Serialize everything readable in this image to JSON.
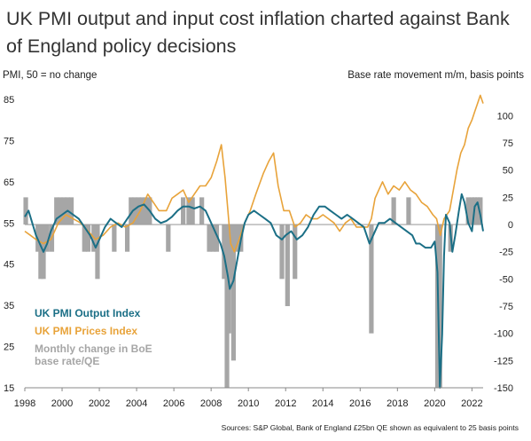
{
  "title": "UK PMI output and input cost inflation charted against Bank of England policy decisions",
  "left_axis_label": "PMI, 50 = no change",
  "right_axis_label": "Base rate movement m/m, basis points",
  "source": "Sources: S&P Global, Bank of England £25bn QE shown as equivalent to 25 basis points",
  "colors": {
    "output": "#1b6f86",
    "prices": "#e8a33a",
    "bars": "#a6a6a6",
    "zero_line": "#a0a0a0",
    "axis": "#888888"
  },
  "chart_data": {
    "type": "line",
    "x_ticks": [
      "1998",
      "2000",
      "2002",
      "2004",
      "2006",
      "2008",
      "2010",
      "2012",
      "2014",
      "2016",
      "2018",
      "2020",
      "2022"
    ],
    "xlim": [
      1998,
      2022.6
    ],
    "ylim_left": [
      15,
      85
    ],
    "ylim_right": [
      -150,
      115
    ],
    "y_ticks_left": [
      "85",
      "75",
      "65",
      "55",
      "45",
      "35",
      "25",
      "15"
    ],
    "y_ticks_right": [
      "100",
      "75",
      "50",
      "25",
      "0",
      "-25",
      "-50",
      "-75",
      "-100",
      "-125",
      "-150"
    ],
    "series": [
      {
        "name": "UK PMI Output Index",
        "axis": "left",
        "points": [
          [
            1998.0,
            56.5
          ],
          [
            1998.2,
            58
          ],
          [
            1998.4,
            55
          ],
          [
            1998.6,
            52
          ],
          [
            1998.8,
            50
          ],
          [
            1999.0,
            48
          ],
          [
            1999.2,
            50
          ],
          [
            1999.4,
            53
          ],
          [
            1999.7,
            56
          ],
          [
            2000.0,
            57
          ],
          [
            2000.3,
            58
          ],
          [
            2000.6,
            57
          ],
          [
            2000.9,
            56
          ],
          [
            2001.2,
            54
          ],
          [
            2001.5,
            52
          ],
          [
            2001.8,
            49
          ],
          [
            2002.0,
            51
          ],
          [
            2002.3,
            54
          ],
          [
            2002.6,
            56
          ],
          [
            2002.9,
            55
          ],
          [
            2003.2,
            54
          ],
          [
            2003.5,
            56
          ],
          [
            2003.8,
            58
          ],
          [
            2004.1,
            59
          ],
          [
            2004.4,
            59.5
          ],
          [
            2004.7,
            58
          ],
          [
            2005.0,
            56
          ],
          [
            2005.3,
            55
          ],
          [
            2005.6,
            55.5
          ],
          [
            2005.9,
            56.5
          ],
          [
            2006.2,
            58
          ],
          [
            2006.5,
            59
          ],
          [
            2006.8,
            59
          ],
          [
            2007.1,
            58.5
          ],
          [
            2007.4,
            59
          ],
          [
            2007.7,
            58
          ],
          [
            2007.9,
            56
          ],
          [
            2008.1,
            54
          ],
          [
            2008.3,
            52
          ],
          [
            2008.5,
            50
          ],
          [
            2008.7,
            47
          ],
          [
            2008.9,
            42
          ],
          [
            2009.0,
            39
          ],
          [
            2009.2,
            41
          ],
          [
            2009.4,
            46
          ],
          [
            2009.6,
            51
          ],
          [
            2009.8,
            55
          ],
          [
            2010.0,
            57
          ],
          [
            2010.3,
            58
          ],
          [
            2010.6,
            57
          ],
          [
            2010.9,
            56
          ],
          [
            2011.2,
            55
          ],
          [
            2011.5,
            52
          ],
          [
            2011.8,
            51
          ],
          [
            2012.0,
            52
          ],
          [
            2012.3,
            53
          ],
          [
            2012.6,
            51
          ],
          [
            2012.9,
            52
          ],
          [
            2013.2,
            54
          ],
          [
            2013.5,
            57
          ],
          [
            2013.8,
            59
          ],
          [
            2014.1,
            59
          ],
          [
            2014.4,
            58
          ],
          [
            2014.7,
            57
          ],
          [
            2015.0,
            56
          ],
          [
            2015.3,
            57
          ],
          [
            2015.6,
            56
          ],
          [
            2015.9,
            55
          ],
          [
            2016.2,
            54
          ],
          [
            2016.5,
            50
          ],
          [
            2016.7,
            52
          ],
          [
            2017.0,
            55
          ],
          [
            2017.3,
            55
          ],
          [
            2017.6,
            56
          ],
          [
            2017.9,
            55
          ],
          [
            2018.2,
            54
          ],
          [
            2018.5,
            53
          ],
          [
            2018.8,
            52
          ],
          [
            2019.0,
            50
          ],
          [
            2019.2,
            50
          ],
          [
            2019.5,
            49
          ],
          [
            2019.8,
            49
          ],
          [
            2020.0,
            50.5
          ],
          [
            2020.15,
            43
          ],
          [
            2020.28,
            15
          ],
          [
            2020.4,
            28
          ],
          [
            2020.5,
            47
          ],
          [
            2020.6,
            57
          ],
          [
            2020.8,
            55
          ],
          [
            2020.95,
            48
          ],
          [
            2021.1,
            52
          ],
          [
            2021.3,
            58
          ],
          [
            2021.45,
            62
          ],
          [
            2021.6,
            60
          ],
          [
            2021.8,
            55
          ],
          [
            2022.0,
            53
          ],
          [
            2022.15,
            59
          ],
          [
            2022.3,
            60
          ],
          [
            2022.45,
            57
          ],
          [
            2022.6,
            53
          ]
        ]
      },
      {
        "name": "UK PMI Prices Index",
        "axis": "left",
        "points": [
          [
            1998.0,
            53
          ],
          [
            1998.3,
            52
          ],
          [
            1998.6,
            51
          ],
          [
            1999.0,
            50
          ],
          [
            1999.4,
            51
          ],
          [
            1999.8,
            55
          ],
          [
            2000.2,
            57
          ],
          [
            2000.6,
            56
          ],
          [
            2001.0,
            55
          ],
          [
            2001.4,
            53
          ],
          [
            2001.8,
            51
          ],
          [
            2002.2,
            52
          ],
          [
            2002.6,
            54
          ],
          [
            2003.0,
            55
          ],
          [
            2003.4,
            54
          ],
          [
            2003.8,
            55
          ],
          [
            2004.2,
            58
          ],
          [
            2004.6,
            62
          ],
          [
            2004.9,
            60
          ],
          [
            2005.2,
            58
          ],
          [
            2005.6,
            58
          ],
          [
            2005.9,
            61
          ],
          [
            2006.2,
            62
          ],
          [
            2006.5,
            63
          ],
          [
            2006.8,
            60
          ],
          [
            2007.1,
            62
          ],
          [
            2007.4,
            64
          ],
          [
            2007.7,
            64
          ],
          [
            2008.0,
            66
          ],
          [
            2008.3,
            70
          ],
          [
            2008.55,
            74
          ],
          [
            2008.75,
            66
          ],
          [
            2008.9,
            58
          ],
          [
            2009.05,
            50
          ],
          [
            2009.25,
            48
          ],
          [
            2009.5,
            51
          ],
          [
            2009.8,
            55
          ],
          [
            2010.1,
            58
          ],
          [
            2010.4,
            62
          ],
          [
            2010.8,
            67
          ],
          [
            2011.1,
            70
          ],
          [
            2011.35,
            72
          ],
          [
            2011.6,
            64
          ],
          [
            2011.9,
            58
          ],
          [
            2012.2,
            58
          ],
          [
            2012.5,
            54
          ],
          [
            2012.8,
            55
          ],
          [
            2013.1,
            57
          ],
          [
            2013.4,
            56
          ],
          [
            2013.7,
            56
          ],
          [
            2014.0,
            57
          ],
          [
            2014.3,
            56
          ],
          [
            2014.6,
            55
          ],
          [
            2014.9,
            53
          ],
          [
            2015.2,
            55
          ],
          [
            2015.5,
            56
          ],
          [
            2015.8,
            54
          ],
          [
            2016.1,
            54
          ],
          [
            2016.4,
            54
          ],
          [
            2016.6,
            56
          ],
          [
            2016.8,
            61
          ],
          [
            2017.0,
            63
          ],
          [
            2017.2,
            65
          ],
          [
            2017.5,
            62
          ],
          [
            2017.8,
            64
          ],
          [
            2018.1,
            63
          ],
          [
            2018.4,
            65
          ],
          [
            2018.7,
            63
          ],
          [
            2019.0,
            62
          ],
          [
            2019.3,
            60
          ],
          [
            2019.6,
            59
          ],
          [
            2019.9,
            57
          ],
          [
            2020.1,
            56
          ],
          [
            2020.3,
            52
          ],
          [
            2020.5,
            56
          ],
          [
            2020.8,
            58
          ],
          [
            2021.0,
            63
          ],
          [
            2021.2,
            68
          ],
          [
            2021.4,
            72
          ],
          [
            2021.6,
            74
          ],
          [
            2021.8,
            78
          ],
          [
            2022.0,
            80
          ],
          [
            2022.15,
            82
          ],
          [
            2022.3,
            84
          ],
          [
            2022.45,
            86
          ],
          [
            2022.6,
            84
          ]
        ]
      },
      {
        "name": "Monthly change in BoE base rate/QE",
        "axis": "right",
        "type": "bar",
        "points": [
          [
            1998.05,
            25
          ],
          [
            1998.7,
            -25
          ],
          [
            1998.85,
            -50
          ],
          [
            1999.0,
            -50
          ],
          [
            1999.2,
            -25
          ],
          [
            1999.45,
            -25
          ],
          [
            1999.7,
            25
          ],
          [
            1999.9,
            25
          ],
          [
            2000.1,
            25
          ],
          [
            2000.3,
            25
          ],
          [
            2000.5,
            25
          ],
          [
            2001.2,
            -25
          ],
          [
            2001.4,
            -25
          ],
          [
            2001.7,
            -25
          ],
          [
            2001.9,
            -50
          ],
          [
            2002.8,
            -25
          ],
          [
            2003.5,
            -25
          ],
          [
            2003.7,
            25
          ],
          [
            2003.9,
            25
          ],
          [
            2004.1,
            25
          ],
          [
            2004.3,
            25
          ],
          [
            2004.5,
            25
          ],
          [
            2004.7,
            25
          ],
          [
            2005.7,
            -25
          ],
          [
            2006.5,
            25
          ],
          [
            2006.8,
            25
          ],
          [
            2007.0,
            25
          ],
          [
            2007.5,
            25
          ],
          [
            2007.9,
            -25
          ],
          [
            2008.1,
            -25
          ],
          [
            2008.3,
            -25
          ],
          [
            2008.7,
            -50
          ],
          [
            2008.85,
            -150
          ],
          [
            2008.95,
            -100
          ],
          [
            2009.05,
            -50
          ],
          [
            2009.2,
            -125
          ],
          [
            2009.4,
            -25
          ],
          [
            2009.6,
            -25
          ],
          [
            2011.8,
            -50
          ],
          [
            2012.1,
            -75
          ],
          [
            2012.5,
            -50
          ],
          [
            2016.6,
            -100
          ],
          [
            2017.8,
            25
          ],
          [
            2018.6,
            25
          ],
          [
            2020.15,
            -150
          ],
          [
            2020.28,
            -150
          ],
          [
            2020.85,
            -25
          ],
          [
            2021.8,
            25
          ],
          [
            2022.0,
            25
          ],
          [
            2022.15,
            25
          ],
          [
            2022.3,
            25
          ],
          [
            2022.45,
            25
          ]
        ]
      }
    ]
  }
}
